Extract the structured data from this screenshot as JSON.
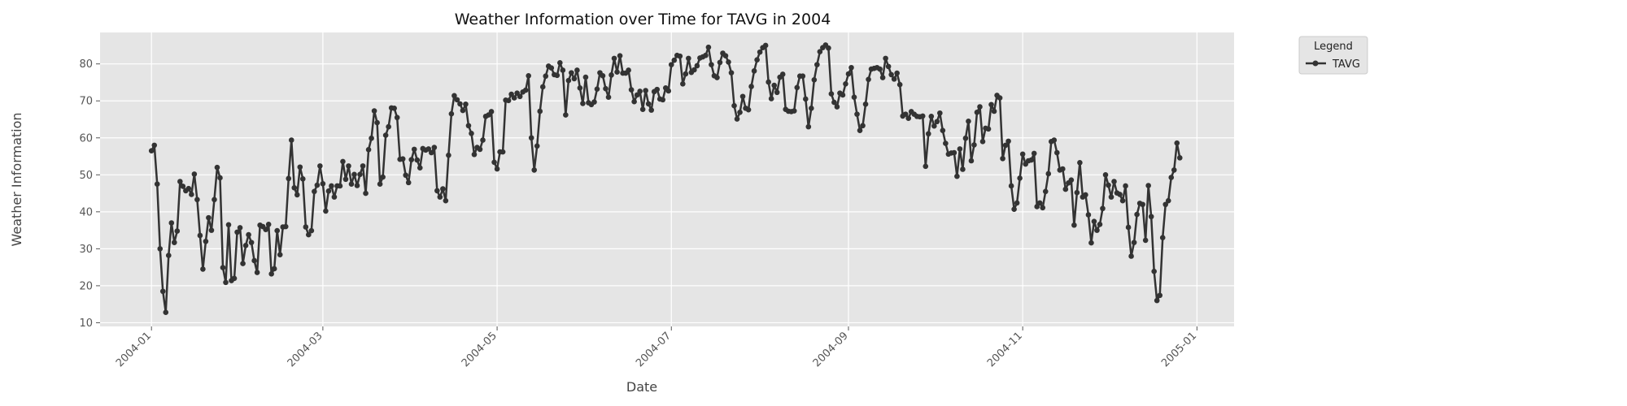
{
  "chart_data": {
    "type": "line",
    "title": "Weather Information over Time for TAVG in 2004",
    "xlabel": "Date",
    "ylabel": "Weather Information",
    "x_ticks": [
      "2004-01",
      "2004-03",
      "2004-05",
      "2004-07",
      "2004-09",
      "2004-11",
      "2005-01"
    ],
    "x_tick_dates": [
      "2004-01-01",
      "2004-03-01",
      "2004-05-01",
      "2004-07-01",
      "2004-09-01",
      "2004-11-01",
      "2005-01-01"
    ],
    "y_ticks": [
      10,
      20,
      30,
      40,
      50,
      60,
      70,
      80
    ],
    "xlim": [
      "2003-12-14",
      "2005-01-14"
    ],
    "ylim": [
      9,
      88.5
    ],
    "grid": true,
    "legend": {
      "title": "Legend",
      "position": "outside-top-right"
    },
    "colors": {
      "line": "#333333",
      "plot_bg": "#e5e5e5",
      "grid": "#ffffff",
      "legend_bg": "#e5e5e5"
    },
    "series": [
      {
        "name": "TAVG",
        "start_date": "2004-01-01",
        "step_days": 1,
        "values": [
          56.5,
          58,
          47.5,
          30,
          18.5,
          12.8,
          28.2,
          37,
          31.7,
          34.8,
          48.2,
          46.9,
          45.7,
          46.3,
          44.7,
          50.2,
          43.3,
          33.6,
          24.5,
          32,
          38.4,
          35,
          43.3,
          52,
          49.2,
          24.9,
          20.9,
          36.5,
          21.4,
          22,
          34.5,
          35.7,
          26,
          30.9,
          33.8,
          31.7,
          26.8,
          23.6,
          36.4,
          36,
          35.2,
          36.6,
          23.2,
          24.6,
          34.9,
          28.4,
          35.9,
          36,
          49,
          59.4,
          46.5,
          44.6,
          52.1,
          48.9,
          35.9,
          33.8,
          34.9,
          45.5,
          47.2,
          52.4,
          47.6,
          40.2,
          45.6,
          47,
          44,
          47,
          47,
          53.6,
          48.8,
          52.4,
          47.5,
          50.1,
          47.1,
          50.1,
          52.4,
          45,
          56.8,
          59.9,
          67.3,
          64.1,
          47.5,
          49.4,
          60.7,
          63,
          68.1,
          68,
          65.5,
          54.2,
          54.3,
          49.9,
          47.9,
          54.1,
          56.9,
          54,
          51.9,
          57.1,
          56.7,
          57,
          56,
          57.4,
          45.7,
          44,
          46.2,
          43,
          55.3,
          66.5,
          71.4,
          70.3,
          69.2,
          67.4,
          69.1,
          63.3,
          61.2,
          55.5,
          57.4,
          56.9,
          59.4,
          65.8,
          66.2,
          67.1,
          53.4,
          51.6,
          56.2,
          56.2,
          70.2,
          70.1,
          71.8,
          70.8,
          72.1,
          71.2,
          72.4,
          72.9,
          76.8,
          60,
          51.3,
          57.8,
          67.2,
          73.8,
          76.7,
          79.4,
          78.9,
          77.1,
          76.9,
          80.3,
          78.3,
          66.2,
          75.5,
          77.6,
          76,
          78.3,
          73.5,
          69.3,
          76.4,
          69.5,
          69,
          69.7,
          73.2,
          77.6,
          76.8,
          73.3,
          71,
          77,
          81.5,
          77.8,
          82.2,
          77.5,
          77.5,
          78.3,
          73,
          69.8,
          71.6,
          72.6,
          67.7,
          72.8,
          69.2,
          67.5,
          72.5,
          73.1,
          70.5,
          70.3,
          73.5,
          72.7,
          79.8,
          81,
          82.3,
          82.1,
          74.6,
          77.3,
          81.5,
          77.7,
          78.4,
          79.5,
          81.6,
          81.9,
          82.3,
          84.5,
          79.8,
          76.8,
          76.3,
          80.4,
          82.9,
          82.2,
          80.5,
          77.6,
          68.7,
          65.1,
          66.9,
          71.2,
          68,
          67.6,
          73.9,
          78.1,
          81.1,
          83.2,
          84.4,
          85,
          75.1,
          70.6,
          74.2,
          72.3,
          76.4,
          77.2,
          67.7,
          67.2,
          67.1,
          67.3,
          73.6,
          76.7,
          76.7,
          70.5,
          63,
          68,
          75.7,
          79.8,
          83.3,
          84.4,
          85.1,
          84.3,
          71.9,
          69.6,
          68.4,
          72.1,
          71.6,
          74.6,
          77.3,
          79,
          71,
          66.4,
          62,
          63.3,
          69.1,
          75.8,
          78.6,
          78.8,
          79,
          78.6,
          76.3,
          81.5,
          79.3,
          77.1,
          75.9,
          77.5,
          74.4,
          65.9,
          66.4,
          65.3,
          67.1,
          66.4,
          65.8,
          65.7,
          65.9,
          52.3,
          61.1,
          65.8,
          63.2,
          64.4,
          66.7,
          62,
          58.5,
          55.6,
          55.9,
          56,
          49.6,
          57,
          51.5,
          59.9,
          64.5,
          53.8,
          58.1,
          66.9,
          68.4,
          59,
          62.6,
          62.4,
          69,
          67.2,
          71.5,
          70.8,
          54.4,
          58,
          59.1,
          47,
          40.7,
          42.4,
          49.1,
          55.6,
          52.9,
          53.8,
          54,
          55.8,
          41.4,
          42.4,
          41.1,
          45.5,
          50.3,
          59,
          59.4,
          56,
          51.3,
          51.6,
          46.1,
          47.8,
          48.6,
          36.4,
          45.2,
          53.3,
          44,
          44.6,
          39.2,
          31.6,
          37.4,
          35,
          36.6,
          40.9,
          50,
          47.2,
          44,
          48.2,
          45.1,
          44.7,
          43,
          47,
          35.8,
          28,
          31.7,
          39.3,
          42.3,
          42,
          32.3,
          47.1,
          38.7,
          23.9,
          16,
          17.4,
          33,
          42,
          43,
          49.3,
          51.3,
          58.6,
          54.6
        ]
      }
    ]
  }
}
